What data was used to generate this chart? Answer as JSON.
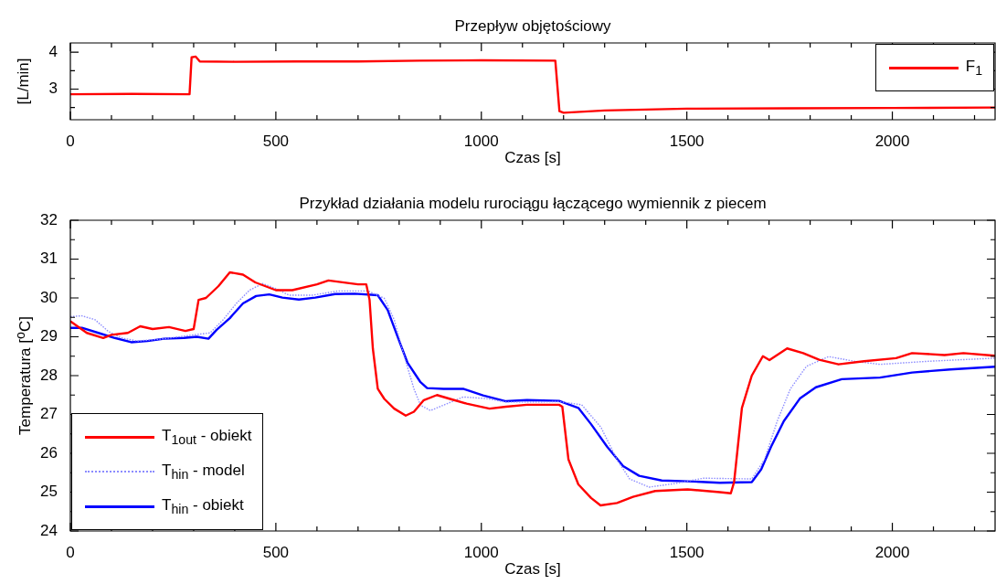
{
  "chart_data": [
    {
      "type": "line",
      "title": "Przepływ objętościowy",
      "xlabel": "Czas [s]",
      "ylabel": "[L/min]",
      "xlim": [
        0,
        2250
      ],
      "ylim": [
        2.17,
        4.25
      ],
      "xticks": [
        0,
        {
          "value": 100,
          "label": null
        },
        {
          "value": 200,
          "label": null
        },
        {
          "value": 300,
          "label": null
        },
        {
          "value": 400,
          "label": null
        },
        500,
        {
          "value": 600,
          "label": null
        },
        {
          "value": 700,
          "label": null
        },
        {
          "value": 800,
          "label": null
        },
        {
          "value": 900,
          "label": null
        },
        1000,
        {
          "value": 1100,
          "label": null
        },
        {
          "value": 1200,
          "label": null
        },
        {
          "value": 1300,
          "label": null
        },
        {
          "value": 1400,
          "label": null
        },
        1500,
        {
          "value": 1600,
          "label": null
        },
        {
          "value": 1700,
          "label": null
        },
        {
          "value": 1800,
          "label": null
        },
        {
          "value": 1900,
          "label": null
        },
        2000,
        {
          "value": 2100,
          "label": null
        },
        {
          "value": 2200,
          "label": null
        }
      ],
      "yticks": [
        {
          "value": 2.5,
          "label": null
        },
        3,
        {
          "value": 3.5,
          "label": null
        },
        4
      ],
      "grid": false,
      "legend": "top right",
      "line_style": "solid",
      "marker": "none",
      "series": [
        {
          "name": "F$_{1}$",
          "color": "#ff0000",
          "x": [
            0,
            150,
            290,
            295,
            305,
            315,
            400,
            550,
            700,
            850,
            1000,
            1180,
            1190,
            1200,
            1300,
            1500,
            1750,
            2000,
            2250
          ],
          "values": [
            2.86,
            2.87,
            2.86,
            3.86,
            3.88,
            3.75,
            3.74,
            3.75,
            3.75,
            3.77,
            3.78,
            3.77,
            2.4,
            2.36,
            2.42,
            2.47,
            2.48,
            2.49,
            2.5
          ]
        }
      ]
    },
    {
      "type": "line",
      "title": "Przykład działania modelu rurociągu łączącego wymiennik z piecem",
      "xlabel": "Czas [s]",
      "ylabel": "Temperatura [$^{o}$C]",
      "xlim": [
        0,
        2250
      ],
      "ylim": [
        24,
        32
      ],
      "xticks": [
        0,
        {
          "value": 100,
          "label": null
        },
        {
          "value": 200,
          "label": null
        },
        {
          "value": 300,
          "label": null
        },
        {
          "value": 400,
          "label": null
        },
        500,
        {
          "value": 600,
          "label": null
        },
        {
          "value": 700,
          "label": null
        },
        {
          "value": 800,
          "label": null
        },
        {
          "value": 900,
          "label": null
        },
        1000,
        {
          "value": 1100,
          "label": null
        },
        {
          "value": 1200,
          "label": null
        },
        {
          "value": 1300,
          "label": null
        },
        {
          "value": 1400,
          "label": null
        },
        1500,
        {
          "value": 1600,
          "label": null
        },
        {
          "value": 1700,
          "label": null
        },
        {
          "value": 1800,
          "label": null
        },
        {
          "value": 1900,
          "label": null
        },
        2000,
        {
          "value": 2100,
          "label": null
        },
        {
          "value": 2200,
          "label": null
        }
      ],
      "yticks": [
        24,
        {
          "value": 24.5,
          "label": null
        },
        25,
        {
          "value": 25.5,
          "label": null
        },
        26,
        {
          "value": 26.5,
          "label": null
        },
        27,
        {
          "value": 27.5,
          "label": null
        },
        28,
        {
          "value": 28.5,
          "label": null
        },
        29,
        {
          "value": 29.5,
          "label": null
        },
        30,
        {
          "value": 30.5,
          "label": null
        },
        31,
        {
          "value": 31.5,
          "label": null
        },
        32
      ],
      "grid": false,
      "legend": "bottom left",
      "marker": "none",
      "series": [
        {
          "name": "T$_{1out}$ - obiekt",
          "color": "#ff0000",
          "line_style": "solid",
          "x": [
            0,
            40,
            80,
            100,
            140,
            170,
            200,
            240,
            280,
            300,
            312,
            330,
            360,
            388,
            420,
            450,
            500,
            540,
            600,
            628,
            700,
            720,
            728,
            736,
            748,
            764,
            788,
            816,
            836,
            860,
            892,
            924,
            964,
            1020,
            1060,
            1111,
            1189,
            1197,
            1212,
            1236,
            1267,
            1290,
            1330,
            1369,
            1423,
            1502,
            1580,
            1607,
            1615,
            1634,
            1658,
            1685,
            1701,
            1744,
            1783,
            1822,
            1869,
            1931,
            2009,
            2048,
            2127,
            2173,
            2250
          ],
          "values": [
            29.4,
            29.1,
            28.97,
            29.05,
            29.1,
            29.27,
            29.2,
            29.25,
            29.15,
            29.2,
            29.95,
            30.0,
            30.3,
            30.66,
            30.6,
            30.4,
            30.2,
            30.2,
            30.35,
            30.45,
            30.35,
            30.35,
            29.95,
            28.7,
            27.66,
            27.4,
            27.15,
            26.97,
            27.07,
            27.37,
            27.5,
            27.4,
            27.28,
            27.15,
            27.2,
            27.25,
            27.25,
            27.2,
            25.84,
            25.2,
            24.85,
            24.66,
            24.72,
            24.88,
            25.03,
            25.07,
            25.0,
            24.97,
            25.26,
            27.17,
            28.0,
            28.5,
            28.4,
            28.7,
            28.58,
            28.41,
            28.29,
            28.37,
            28.45,
            28.58,
            28.53,
            28.58,
            28.51
          ]
        },
        {
          "name": "T$_{hin}$ - model",
          "color": "#8c8cff",
          "line_style": "dotted",
          "x": [
            0,
            28,
            60,
            92,
            124,
            164,
            228,
            308,
            340,
            372,
            404,
            436,
            468,
            500,
            532,
            588,
            652,
            724,
            764,
            788,
            812,
            836,
            852,
            876,
            908,
            956,
            1012,
            1060,
            1111,
            1189,
            1244,
            1291,
            1330,
            1361,
            1408,
            1470,
            1541,
            1658,
            1689,
            1720,
            1752,
            1791,
            1845,
            1908,
            1970,
            2088,
            2250
          ],
          "values": [
            29.52,
            29.54,
            29.44,
            29.14,
            28.97,
            28.89,
            28.95,
            29.06,
            29.1,
            29.44,
            29.86,
            30.2,
            30.37,
            30.24,
            30.07,
            30.07,
            30.18,
            30.18,
            29.99,
            29.44,
            28.51,
            27.66,
            27.24,
            27.1,
            27.24,
            27.45,
            27.41,
            27.32,
            27.32,
            27.33,
            27.25,
            26.67,
            25.84,
            25.34,
            25.13,
            25.22,
            25.36,
            25.34,
            25.84,
            26.83,
            27.66,
            28.24,
            28.49,
            28.37,
            28.29,
            28.37,
            28.45
          ]
        },
        {
          "name": "T$_{hin}$ - obiekt",
          "color": "#0000ff",
          "line_style": "solid",
          "x": [
            0,
            28,
            68,
            108,
            148,
            188,
            228,
            276,
            308,
            336,
            356,
            388,
            420,
            452,
            484,
            516,
            556,
            596,
            644,
            692,
            748,
            772,
            796,
            820,
            852,
            868,
            908,
            956,
            1004,
            1060,
            1111,
            1189,
            1236,
            1267,
            1306,
            1345,
            1384,
            1439,
            1502,
            1580,
            1658,
            1681,
            1705,
            1736,
            1775,
            1814,
            1877,
            1970,
            2048,
            2141,
            2250
          ],
          "values": [
            29.23,
            29.23,
            29.1,
            28.97,
            28.86,
            28.89,
            28.95,
            28.97,
            29.0,
            28.95,
            29.18,
            29.48,
            29.86,
            30.05,
            30.09,
            30.01,
            29.96,
            30.01,
            30.1,
            30.11,
            30.07,
            29.69,
            29.01,
            28.34,
            27.83,
            27.68,
            27.66,
            27.66,
            27.49,
            27.34,
            27.37,
            27.35,
            27.17,
            26.75,
            26.17,
            25.67,
            25.42,
            25.3,
            25.28,
            25.24,
            25.26,
            25.59,
            26.17,
            26.83,
            27.41,
            27.7,
            27.91,
            27.95,
            28.08,
            28.16,
            28.23
          ]
        }
      ]
    }
  ]
}
